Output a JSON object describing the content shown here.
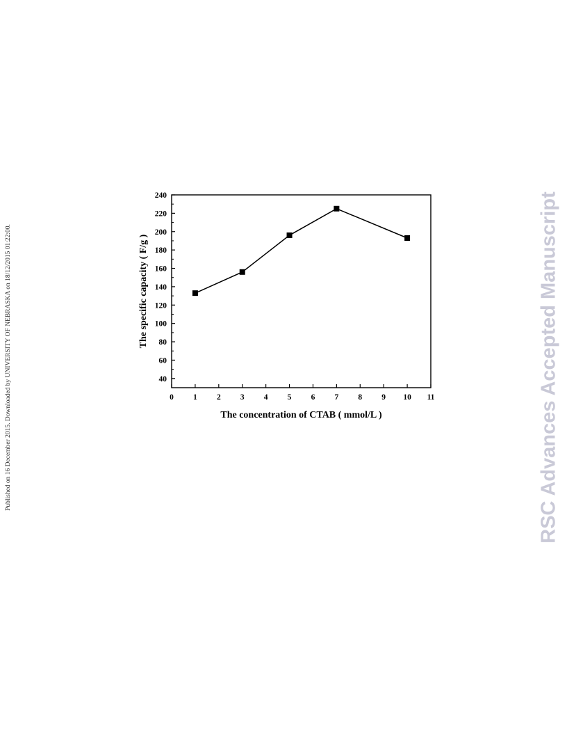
{
  "side_note": "Published on 16 December 2015. Downloaded by UNIVERSITY OF NEBRASKA on 18/12/2015 01:22:00.",
  "watermark": "RSC Advances Accepted Manuscript",
  "chart_data": {
    "type": "line",
    "title": "",
    "xlabel": "The concentration of CTAB ( mmol/L )",
    "ylabel": "The specific capacity ( F/g )",
    "xlim": [
      0,
      11
    ],
    "ylim": [
      30,
      240
    ],
    "x_ticks": [
      0,
      1,
      2,
      3,
      4,
      5,
      6,
      7,
      8,
      9,
      10,
      11
    ],
    "y_ticks": [
      40,
      60,
      80,
      100,
      120,
      140,
      160,
      180,
      200,
      220,
      240
    ],
    "grid": false,
    "legend": "none",
    "marker": "square",
    "colors": {
      "line": "#000000",
      "marker": "#000000",
      "axis": "#000000"
    },
    "series": [
      {
        "x": [
          1,
          3,
          5,
          7,
          10
        ],
        "y": [
          133,
          156,
          196,
          225,
          193
        ]
      }
    ]
  }
}
